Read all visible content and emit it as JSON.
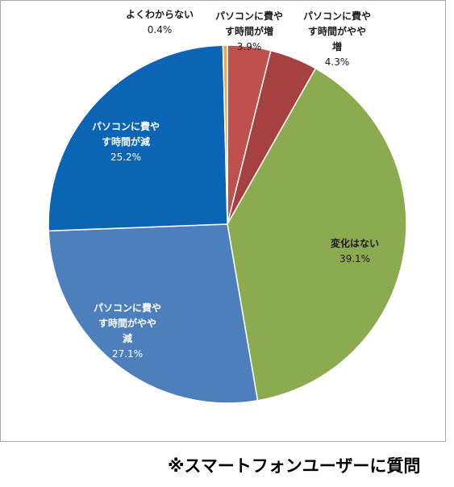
{
  "chart_data": {
    "type": "pie",
    "slices": [
      {
        "label_lines": [
          "パソコンに費や",
          "す時間が増"
        ],
        "value_label": "3.9%",
        "value": 3.9,
        "color": "#c0504d"
      },
      {
        "label_lines": [
          "パソコンに費や",
          "す時間がやや",
          "増"
        ],
        "value_label": "4.3%",
        "value": 4.3,
        "color": "#a54140"
      },
      {
        "label_lines": [
          "変化はない"
        ],
        "value_label": "39.1%",
        "value": 39.1,
        "color": "#8caa4f"
      },
      {
        "label_lines": [
          "パソコンに費や",
          "す時間がやや",
          "減"
        ],
        "value_label": "27.1%",
        "value": 27.1,
        "color": "#4e7fbd"
      },
      {
        "label_lines": [
          "パソコンに費や",
          "す時間が減"
        ],
        "value_label": "25.2%",
        "value": 25.2,
        "color": "#0c64b5"
      },
      {
        "label_lines": [
          "よくわからない"
        ],
        "value_label": "0.4%",
        "value": 0.4,
        "color": "#e5a85c"
      }
    ],
    "start": "12 o'clock",
    "direction": "clockwise"
  },
  "footnote": "※スマートフォンユーザーに質問"
}
